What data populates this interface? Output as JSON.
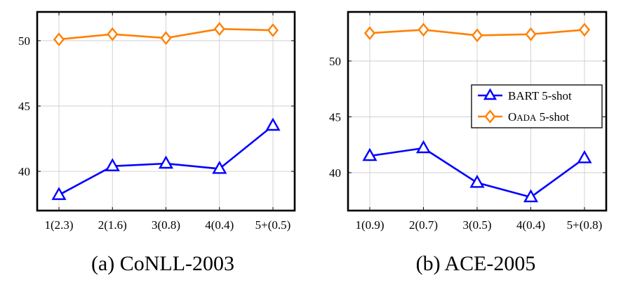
{
  "chart_data": [
    {
      "type": "line",
      "caption": "(a) CoNLL-2003",
      "categories": [
        "1(2.3)",
        "2(1.6)",
        "3(0.8)",
        "4(0.4)",
        "5+(0.5)"
      ],
      "ylim": [
        37.0,
        52.2
      ],
      "yticks": [
        40,
        45,
        50
      ],
      "grid": true,
      "legend": null,
      "series": [
        {
          "name": "BART 5-shot",
          "color": "#0000ff",
          "marker": "triangle",
          "values": [
            38.2,
            40.4,
            40.6,
            40.2,
            43.5
          ]
        },
        {
          "name": "OADA 5-shot",
          "color": "#ff8000",
          "marker": "diamond",
          "values": [
            50.1,
            50.5,
            50.2,
            50.9,
            50.8
          ]
        }
      ]
    },
    {
      "type": "line",
      "caption": "(b) ACE-2005",
      "categories": [
        "1(0.9)",
        "2(0.7)",
        "3(0.5)",
        "4(0.4)",
        "5+(0.8)"
      ],
      "ylim": [
        36.6,
        54.4
      ],
      "yticks": [
        40,
        45,
        50
      ],
      "grid": true,
      "legend": "center-right",
      "series": [
        {
          "name": "BART 5-shot",
          "color": "#0000ff",
          "marker": "triangle",
          "values": [
            41.5,
            42.2,
            39.1,
            37.8,
            41.3
          ]
        },
        {
          "name": "OADA 5-shot",
          "color": "#ff8000",
          "marker": "diamond",
          "values": [
            52.5,
            52.8,
            52.3,
            52.4,
            52.8
          ]
        }
      ]
    }
  ],
  "legend_labels": {
    "bart": "BART 5-shot",
    "oada_first": "O",
    "oada_sc": "ADA",
    "oada_rest": " 5-shot"
  }
}
